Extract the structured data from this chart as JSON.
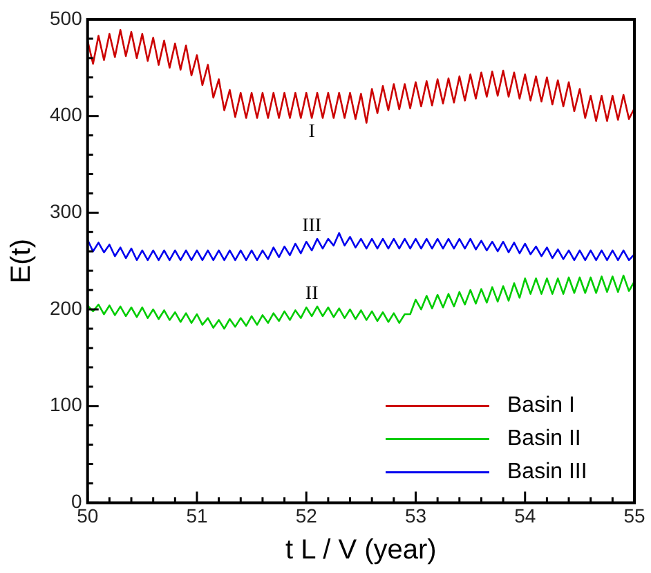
{
  "chart_data": {
    "type": "line",
    "xlabel": "t L / V (year)",
    "ylabel": "E(t)",
    "x": [
      50,
      50.05,
      50.1,
      50.15,
      50.2,
      50.25,
      50.3,
      50.35,
      50.4,
      50.45,
      50.5,
      50.55,
      50.6,
      50.65,
      50.7,
      50.75,
      50.8,
      50.85,
      50.9,
      50.95,
      51,
      51.05,
      51.1,
      51.15,
      51.2,
      51.25,
      51.3,
      51.35,
      51.4,
      51.45,
      51.5,
      51.55,
      51.6,
      51.65,
      51.7,
      51.75,
      51.8,
      51.85,
      51.9,
      51.95,
      52,
      52.05,
      52.1,
      52.15,
      52.2,
      52.25,
      52.3,
      52.35,
      52.4,
      52.45,
      52.5,
      52.55,
      52.6,
      52.65,
      52.7,
      52.75,
      52.8,
      52.85,
      52.9,
      52.95,
      53,
      53.05,
      53.1,
      53.15,
      53.2,
      53.25,
      53.3,
      53.35,
      53.4,
      53.45,
      53.5,
      53.55,
      53.6,
      53.65,
      53.7,
      53.75,
      53.8,
      53.85,
      53.9,
      53.95,
      54,
      54.05,
      54.1,
      54.15,
      54.2,
      54.25,
      54.3,
      54.35,
      54.4,
      54.45,
      54.5,
      54.55,
      54.6,
      54.65,
      54.7,
      54.75,
      54.8,
      54.85,
      54.9,
      54.95,
      55
    ],
    "series": [
      {
        "name": "Basin I",
        "color": "#cc0000",
        "values": [
          478,
          454,
          483,
          458,
          485,
          461,
          489,
          462,
          487,
          460,
          485,
          457,
          481,
          453,
          478,
          450,
          475,
          448,
          473,
          442,
          463,
          432,
          453,
          419,
          438,
          406,
          427,
          399,
          424,
          398,
          424,
          398,
          424,
          398,
          424,
          398,
          424,
          398,
          424,
          398,
          424,
          398,
          424,
          398,
          424,
          398,
          424,
          398,
          424,
          397,
          423,
          393,
          428,
          403,
          431,
          406,
          433,
          407,
          433,
          408,
          435,
          410,
          436,
          411,
          438,
          413,
          439,
          414,
          441,
          416,
          443,
          418,
          445,
          420,
          446,
          421,
          447,
          420,
          445,
          418,
          443,
          416,
          441,
          415,
          440,
          412,
          437,
          410,
          435,
          405,
          428,
          398,
          421,
          395,
          421,
          395,
          421,
          396,
          422,
          397,
          408
        ]
      },
      {
        "name": "Basin II",
        "color": "#00cc00",
        "values": [
          204,
          198,
          205,
          195,
          204,
          194,
          203,
          193,
          202,
          192,
          202,
          191,
          200,
          190,
          199,
          189,
          197,
          187,
          196,
          186,
          195,
          184,
          191,
          181,
          189,
          180,
          190,
          182,
          191,
          183,
          193,
          184,
          194,
          186,
          196,
          188,
          198,
          189,
          199,
          191,
          202,
          193,
          203,
          193,
          202,
          192,
          201,
          191,
          200,
          190,
          199,
          189,
          198,
          188,
          197,
          187,
          196,
          186,
          195,
          195,
          210,
          200,
          214,
          201,
          215,
          202,
          216,
          203,
          218,
          205,
          220,
          206,
          221,
          207,
          223,
          208,
          224,
          209,
          227,
          212,
          232,
          216,
          232,
          216,
          232,
          216,
          232,
          216,
          233,
          217,
          233,
          217,
          233,
          217,
          234,
          218,
          234,
          218,
          235,
          219,
          229
        ]
      },
      {
        "name": "Basin III",
        "color": "#0000ee",
        "values": [
          272,
          260,
          269,
          259,
          267,
          255,
          264,
          253,
          263,
          251,
          261,
          251,
          261,
          251,
          261,
          251,
          261,
          251,
          261,
          251,
          261,
          251,
          261,
          251,
          261,
          251,
          261,
          251,
          261,
          251,
          261,
          251,
          261,
          252,
          264,
          254,
          265,
          256,
          268,
          258,
          270,
          261,
          273,
          263,
          273,
          266,
          279,
          266,
          275,
          264,
          273,
          263,
          273,
          263,
          273,
          263,
          273,
          263,
          273,
          263,
          273,
          263,
          273,
          263,
          273,
          263,
          273,
          263,
          273,
          263,
          273,
          262,
          271,
          261,
          270,
          260,
          270,
          259,
          269,
          258,
          268,
          257,
          265,
          255,
          264,
          253,
          262,
          252,
          261,
          251,
          261,
          251,
          261,
          251,
          261,
          251,
          261,
          251,
          261,
          251,
          257
        ]
      }
    ],
    "xlim": [
      50,
      55
    ],
    "xticks": [
      50,
      {
        "value": 50.2,
        "label": null
      },
      {
        "value": 50.4,
        "label": null
      },
      {
        "value": 50.6,
        "label": null
      },
      {
        "value": 50.8,
        "label": null
      },
      51,
      {
        "value": 51.2,
        "label": null
      },
      {
        "value": 51.4,
        "label": null
      },
      {
        "value": 51.6,
        "label": null
      },
      {
        "value": 51.8,
        "label": null
      },
      52,
      {
        "value": 52.2,
        "label": null
      },
      {
        "value": 52.4,
        "label": null
      },
      {
        "value": 52.6,
        "label": null
      },
      {
        "value": 52.8,
        "label": null
      },
      53,
      {
        "value": 53.2,
        "label": null
      },
      {
        "value": 53.4,
        "label": null
      },
      {
        "value": 53.6,
        "label": null
      },
      {
        "value": 53.8,
        "label": null
      },
      54,
      {
        "value": 54.2,
        "label": null
      },
      {
        "value": 54.4,
        "label": null
      },
      {
        "value": 54.6,
        "label": null
      },
      {
        "value": 54.8,
        "label": null
      },
      55
    ],
    "ylim": [
      0,
      500
    ],
    "yticks": [
      0,
      {
        "value": 20,
        "label": null
      },
      {
        "value": 40,
        "label": null
      },
      {
        "value": 60,
        "label": null
      },
      {
        "value": 80,
        "label": null
      },
      100,
      {
        "value": 120,
        "label": null
      },
      {
        "value": 140,
        "label": null
      },
      {
        "value": 160,
        "label": null
      },
      {
        "value": 180,
        "label": null
      },
      200,
      {
        "value": 220,
        "label": null
      },
      {
        "value": 240,
        "label": null
      },
      {
        "value": 260,
        "label": null
      },
      {
        "value": 280,
        "label": null
      },
      300,
      {
        "value": 320,
        "label": null
      },
      {
        "value": 340,
        "label": null
      },
      {
        "value": 360,
        "label": null
      },
      {
        "value": 380,
        "label": null
      },
      400,
      {
        "value": 420,
        "label": null
      },
      {
        "value": 440,
        "label": null
      },
      {
        "value": 460,
        "label": null
      },
      {
        "value": 480,
        "label": null
      },
      500
    ],
    "annotations": [
      "I",
      "II",
      "III"
    ],
    "legend": "bottom right",
    "grid": false,
    "marker": "none",
    "line_style": "solid"
  }
}
